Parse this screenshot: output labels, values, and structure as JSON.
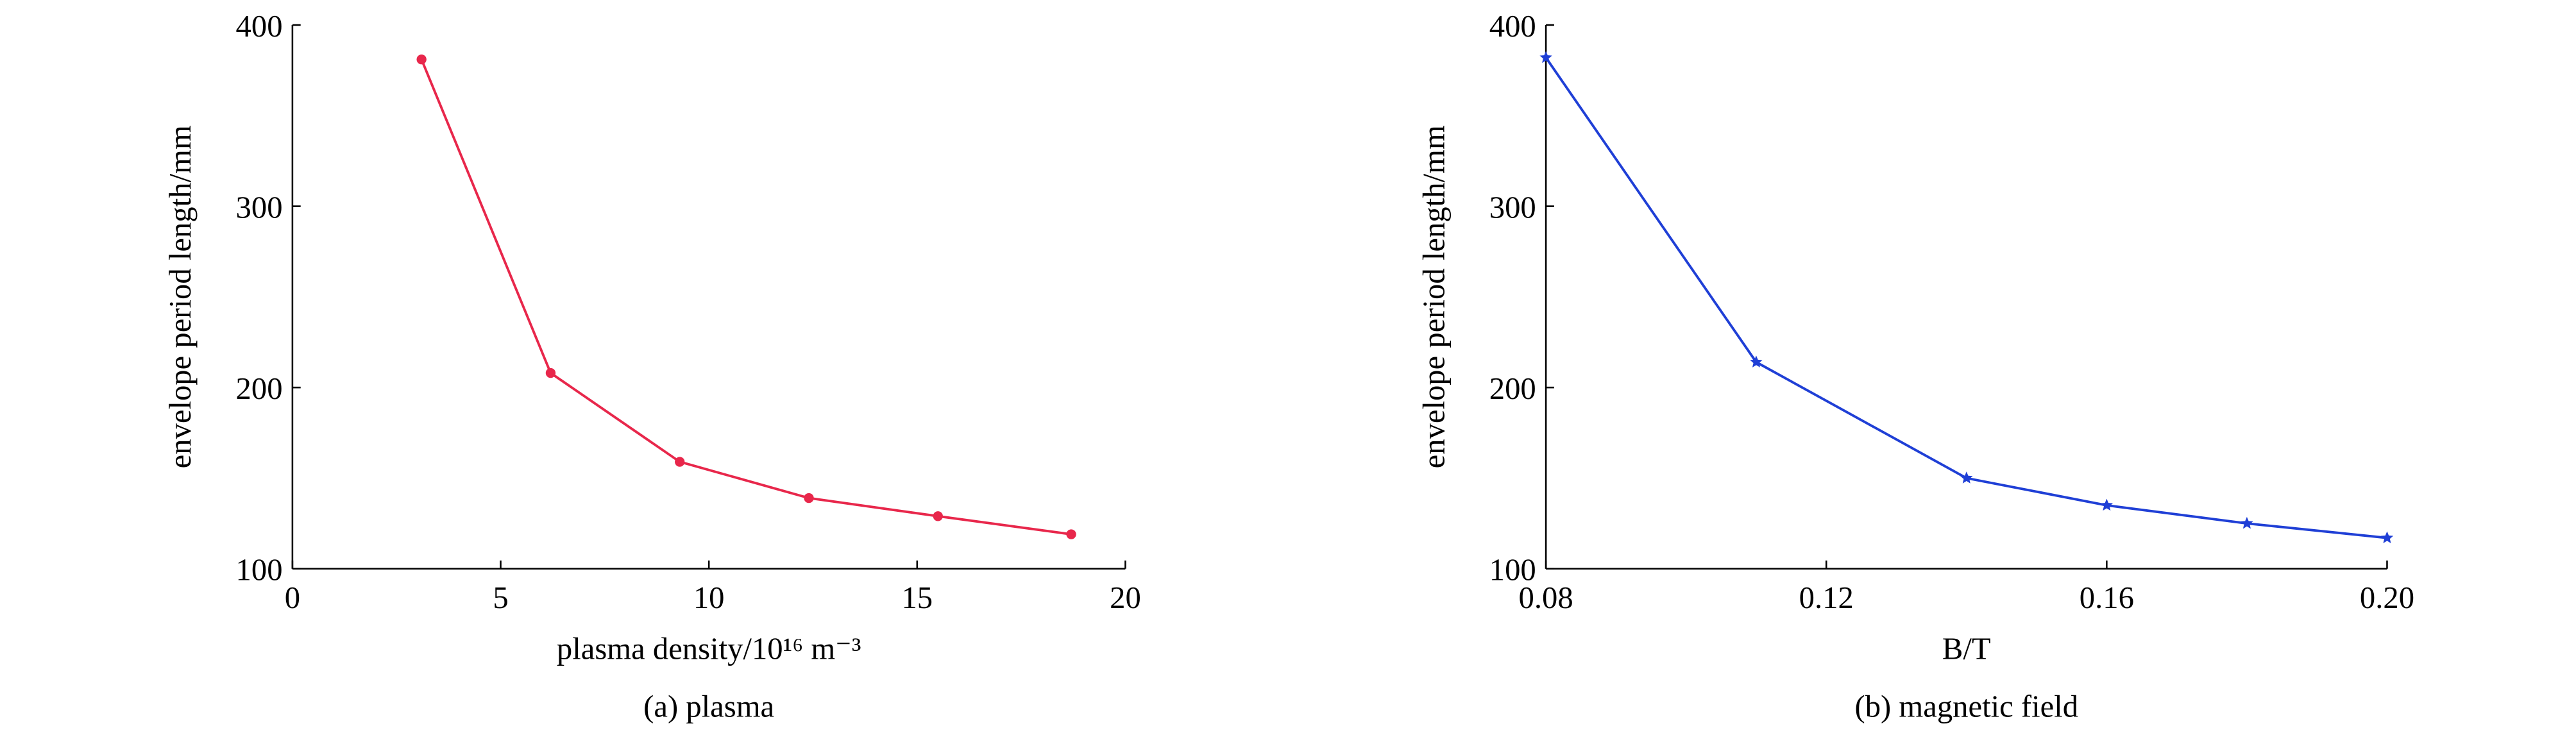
{
  "chart_data": [
    {
      "type": "line",
      "caption": "(a) plasma",
      "xlabel": "plasma density/10¹⁶ m⁻³",
      "ylabel": "envelope period length/mm",
      "x": [
        3.1,
        6.2,
        9.3,
        12.4,
        15.5,
        18.7
      ],
      "series": [
        {
          "color": "#e8274b",
          "marker": "circle",
          "values": [
            381,
            208,
            159,
            139,
            129,
            119
          ]
        }
      ],
      "xlim": [
        0,
        20
      ],
      "xticks": [
        0,
        5,
        10,
        15,
        20
      ],
      "ylim": [
        100,
        400
      ],
      "yticks": [
        100,
        200,
        300,
        400
      ]
    },
    {
      "type": "line",
      "caption": "(b) magnetic field",
      "xlabel": "B/T",
      "ylabel": "envelope period length/mm",
      "x": [
        0.08,
        0.11,
        0.14,
        0.16,
        0.18,
        0.2
      ],
      "series": [
        {
          "color": "#1f3fd6",
          "marker": "star",
          "values": [
            382,
            214,
            150,
            135,
            125,
            117
          ]
        }
      ],
      "xlim": [
        0.08,
        0.2
      ],
      "xticks": [
        0.08,
        0.12,
        0.16,
        {
          "value": 0.2,
          "label": "0.20"
        }
      ],
      "ylim": [
        100,
        400
      ],
      "yticks": [
        100,
        200,
        300,
        400
      ]
    }
  ]
}
